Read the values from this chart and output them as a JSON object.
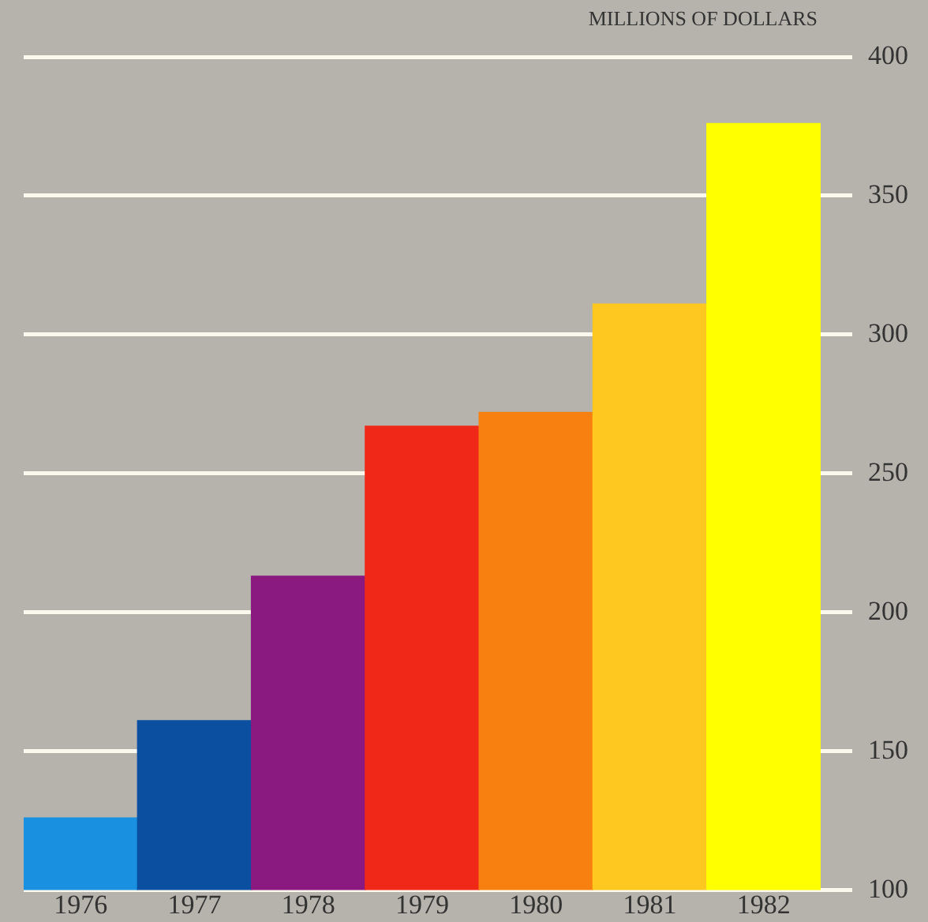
{
  "chart_data": {
    "type": "bar",
    "ylabel": "MILLIONS OF DOLLARS",
    "categories": [
      "1976",
      "1977",
      "1978",
      "1979",
      "1980",
      "1981",
      "1982"
    ],
    "values": [
      126,
      161,
      213,
      267,
      272,
      311,
      376
    ],
    "colors": [
      "#1a90e0",
      "#0a4fa0",
      "#8a1a80",
      "#f02818",
      "#f88010",
      "#ffc820",
      "#ffff00"
    ],
    "ylim": [
      100,
      400
    ],
    "yticks": [
      100,
      150,
      200,
      250,
      300,
      350,
      400
    ],
    "grid": "y",
    "legend": false
  }
}
